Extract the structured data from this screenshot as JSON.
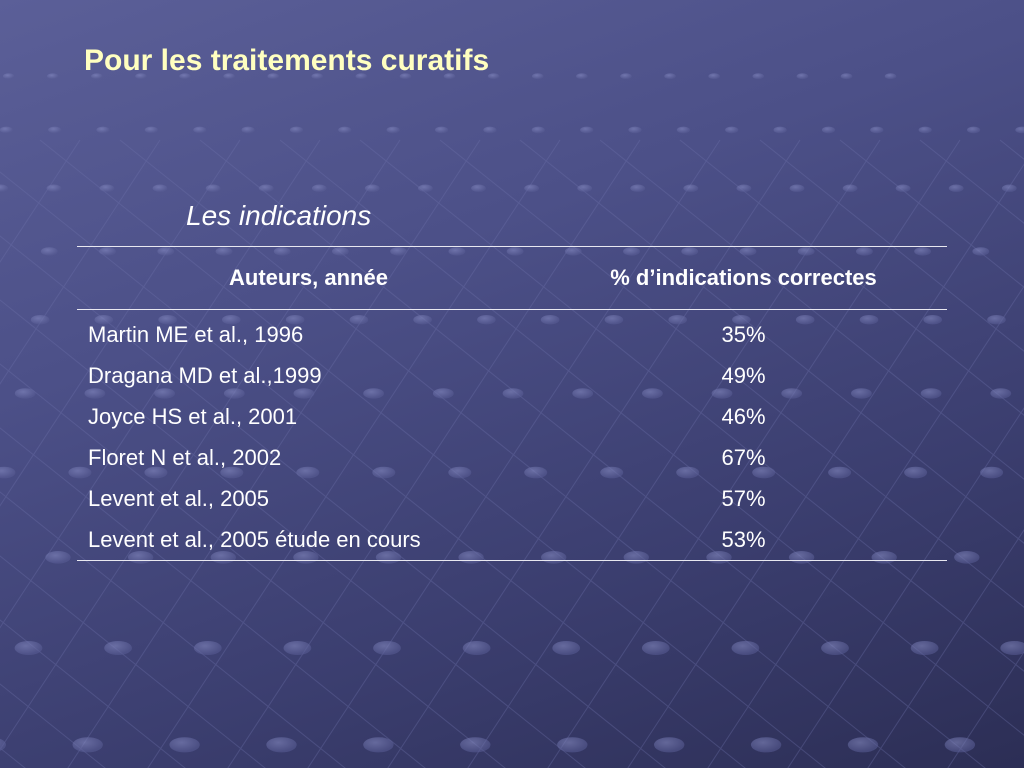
{
  "slide": {
    "title": "Pour les traitements curatifs",
    "table_caption": "Les indications",
    "background_color": "#4c5088",
    "title_color": "#ffffc0"
  },
  "table": {
    "headers": [
      "Auteurs, année",
      "% d’indications correctes"
    ],
    "rows": [
      {
        "author": "Martin ME et al., 1996",
        "percent": "35%"
      },
      {
        "author": "Dragana MD et al.,1999",
        "percent": "49%"
      },
      {
        "author": "Joyce HS et al., 2001",
        "percent": "46%"
      },
      {
        "author": "Floret N et al., 2002",
        "percent": "67%"
      },
      {
        "author": "Levent et al., 2005",
        "percent": "57%"
      },
      {
        "author": "Levent et al., 2005 étude en cours",
        "percent": "53%"
      }
    ]
  }
}
